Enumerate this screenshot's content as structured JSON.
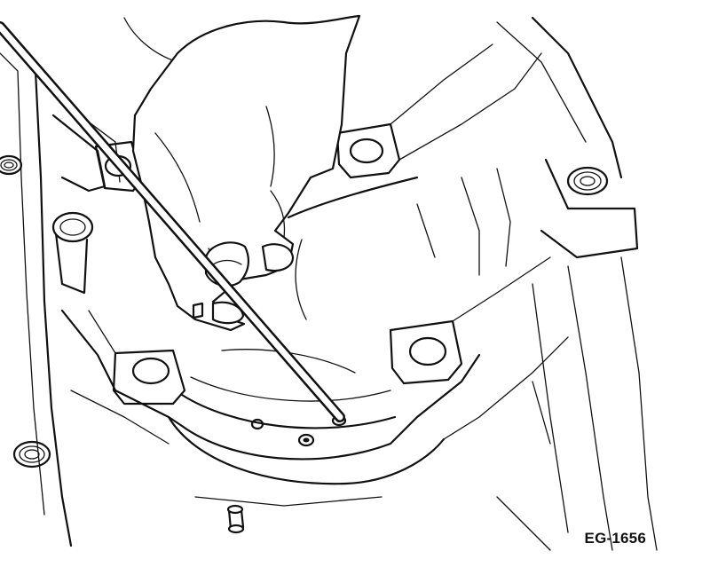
{
  "figure": {
    "id_label": "EG-1656"
  },
  "colors": {
    "line": "#111111",
    "background": "#ffffff"
  }
}
